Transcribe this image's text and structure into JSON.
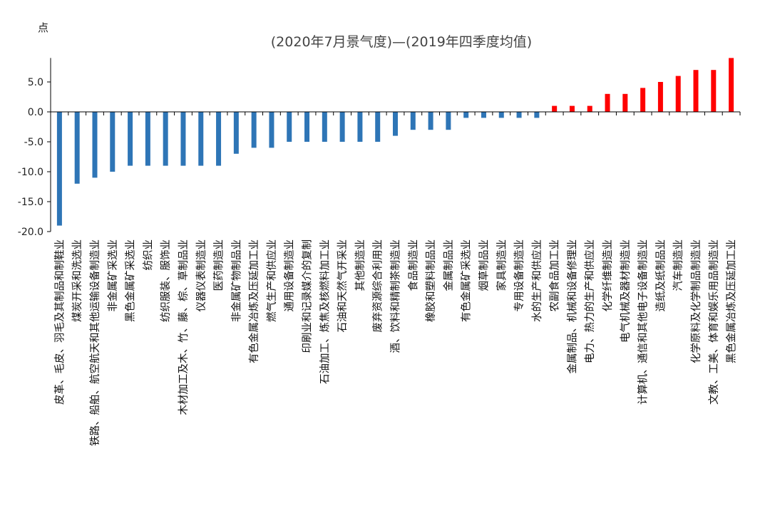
{
  "chart_data": {
    "type": "bar",
    "title": "(2020年7月景气度)—(2019年四季度均值)",
    "ylabel": "点",
    "ylim": [
      -20,
      9
    ],
    "yticks": [
      -20,
      -15,
      -10,
      -5,
      0,
      5
    ],
    "ytick_labels": [
      "-20.0",
      "-15.0",
      "-10.0",
      "-5.0",
      "0.0",
      "5.0"
    ],
    "negative_color": "#2E75B6",
    "positive_color": "#FF0000",
    "categories": [
      "皮革、毛皮、羽毛及其制品和制鞋业",
      "煤炭开采和洗选业",
      "铁路、船舶、航空航天和其他运输设备制造业",
      "非金属矿采选业",
      "黑色金属矿采选业",
      "纺织业",
      "纺织服装、服饰业",
      "木材加工及木、竹、藤、棕、草制品业",
      "仪器仪表制造业",
      "医药制造业",
      "非金属矿物制品业",
      "有色金属冶炼及压延加工业",
      "燃气生产和供应业",
      "通用设备制造业",
      "印刷业和记录媒介的复制",
      "石油加工、炼焦及核燃料加工业",
      "石油和天然气开采业",
      "其他制造业",
      "废弃资源综合利用业",
      "酒、饮料和精制茶制造业",
      "食品制造业",
      "橡胶和塑料制品业",
      "金属制品业",
      "有色金属矿采选业",
      "烟草制品业",
      "家具制造业",
      "专用设备制造业",
      "水的生产和供应业",
      "农副食品加工业",
      "金属制品、机械和设备修理业",
      "电力、热力的生产和供应业",
      "化学纤维制造业",
      "电气机械及器材制造业",
      "计算机、通信和其他电子设备制造业",
      "造纸及纸制品业",
      "汽车制造业",
      "化学原料及化学制品制造业",
      "文教、工美、体育和娱乐用品制造业",
      "黑色金属冶炼及压延加工业"
    ],
    "values": [
      -19,
      -12,
      -11,
      -10,
      -9,
      -9,
      -9,
      -9,
      -9,
      -9,
      -7,
      -6,
      -6,
      -5,
      -5,
      -5,
      -5,
      -5,
      -5,
      -4,
      -3,
      -3,
      -3,
      -1,
      -1,
      -1,
      -1,
      -1,
      1,
      1,
      1,
      3,
      3,
      4,
      5,
      6,
      7,
      7,
      9
    ],
    "grid": false,
    "legend": "none"
  }
}
